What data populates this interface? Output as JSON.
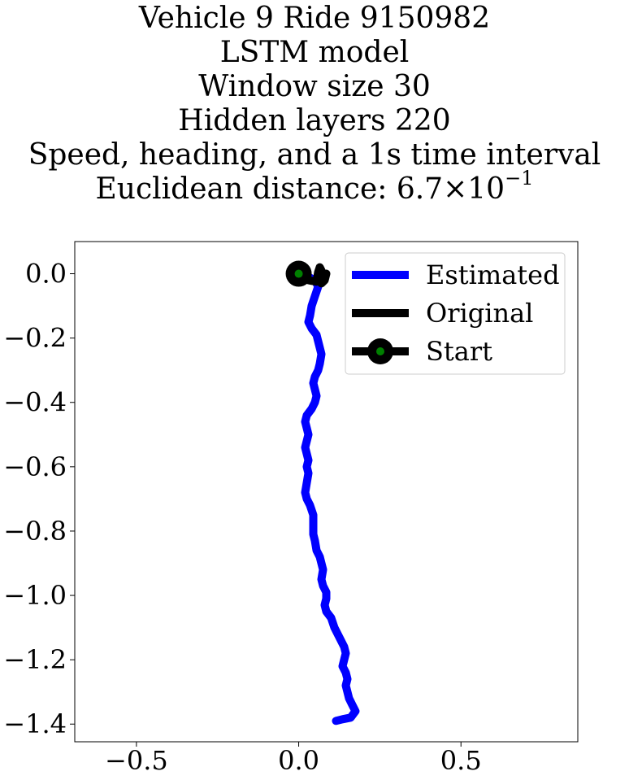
{
  "chart_data": {
    "type": "line",
    "title_lines": [
      "Vehicle 9 Ride 9150982",
      "LSTM model",
      "Window size 30",
      "Hidden layers 220",
      "Speed, heading, and a 1s time interval"
    ],
    "metric": {
      "label": "Euclidean distance: ",
      "mantissa": "6.7",
      "times": "×10",
      "exponent": "−1"
    },
    "xlabel": "",
    "ylabel": "",
    "xlim": [
      -0.69,
      0.86
    ],
    "ylim": [
      -1.455,
      0.1
    ],
    "x_ticks": [
      -0.5,
      0.0,
      0.5
    ],
    "x_tick_labels": [
      "−0.5",
      "0.0",
      "0.5"
    ],
    "y_ticks": [
      0.0,
      -0.2,
      -0.4,
      -0.6,
      -0.8,
      -1.0,
      -1.2,
      -1.4
    ],
    "y_tick_labels": [
      "0.0",
      "−0.2",
      "−0.4",
      "−0.6",
      "−0.8",
      "−1.0",
      "−1.2",
      "−1.4"
    ],
    "grid": false,
    "legend": {
      "placement": "top-right",
      "entries": [
        "Estimated",
        "Original",
        "Start"
      ]
    },
    "series": [
      {
        "name": "Estimated",
        "color": "#0000ff",
        "points": [
          [
            0.0,
            0.0
          ],
          [
            0.03,
            -0.01
          ],
          [
            0.05,
            -0.02
          ],
          [
            0.06,
            -0.04
          ],
          [
            0.05,
            -0.07
          ],
          [
            0.04,
            -0.1
          ],
          [
            0.035,
            -0.13
          ],
          [
            0.03,
            -0.15
          ],
          [
            0.04,
            -0.17
          ],
          [
            0.055,
            -0.19
          ],
          [
            0.06,
            -0.21
          ],
          [
            0.065,
            -0.23
          ],
          [
            0.07,
            -0.25
          ],
          [
            0.065,
            -0.28
          ],
          [
            0.06,
            -0.3
          ],
          [
            0.05,
            -0.32
          ],
          [
            0.045,
            -0.34
          ],
          [
            0.05,
            -0.36
          ],
          [
            0.055,
            -0.38
          ],
          [
            0.05,
            -0.4
          ],
          [
            0.04,
            -0.42
          ],
          [
            0.025,
            -0.44
          ],
          [
            0.02,
            -0.46
          ],
          [
            0.025,
            -0.48
          ],
          [
            0.03,
            -0.5
          ],
          [
            0.025,
            -0.52
          ],
          [
            0.02,
            -0.54
          ],
          [
            0.025,
            -0.56
          ],
          [
            0.03,
            -0.58
          ],
          [
            0.025,
            -0.6
          ],
          [
            0.03,
            -0.62
          ],
          [
            0.025,
            -0.65
          ],
          [
            0.02,
            -0.68
          ],
          [
            0.025,
            -0.7
          ],
          [
            0.035,
            -0.72
          ],
          [
            0.045,
            -0.75
          ],
          [
            0.045,
            -0.78
          ],
          [
            0.045,
            -0.81
          ],
          [
            0.05,
            -0.83
          ],
          [
            0.055,
            -0.86
          ],
          [
            0.065,
            -0.88
          ],
          [
            0.07,
            -0.9
          ],
          [
            0.075,
            -0.92
          ],
          [
            0.07,
            -0.95
          ],
          [
            0.075,
            -0.97
          ],
          [
            0.085,
            -0.99
          ],
          [
            0.085,
            -1.01
          ],
          [
            0.08,
            -1.03
          ],
          [
            0.085,
            -1.05
          ],
          [
            0.1,
            -1.07
          ],
          [
            0.11,
            -1.1
          ],
          [
            0.12,
            -1.12
          ],
          [
            0.13,
            -1.14
          ],
          [
            0.14,
            -1.16
          ],
          [
            0.145,
            -1.18
          ],
          [
            0.14,
            -1.2
          ],
          [
            0.135,
            -1.22
          ],
          [
            0.145,
            -1.24
          ],
          [
            0.15,
            -1.26
          ],
          [
            0.145,
            -1.28
          ],
          [
            0.15,
            -1.3
          ],
          [
            0.155,
            -1.32
          ],
          [
            0.165,
            -1.34
          ],
          [
            0.175,
            -1.36
          ],
          [
            0.16,
            -1.38
          ],
          [
            0.135,
            -1.385
          ],
          [
            0.115,
            -1.39
          ]
        ]
      },
      {
        "name": "Original",
        "color": "#000000",
        "points": [
          [
            0.0,
            0.0
          ],
          [
            0.03,
            -0.02
          ],
          [
            0.055,
            -0.025
          ],
          [
            0.06,
            0.005
          ],
          [
            0.065,
            0.02
          ],
          [
            0.07,
            0.01
          ],
          [
            0.06,
            -0.015
          ],
          [
            0.07,
            -0.03
          ],
          [
            0.08,
            -0.02
          ],
          [
            0.085,
            0.0
          ],
          [
            0.08,
            -0.01
          ],
          [
            0.07,
            -0.02
          ],
          [
            0.06,
            -0.005
          ],
          [
            0.065,
            0.01
          ],
          [
            0.075,
            -0.01
          ]
        ]
      }
    ],
    "start_point": {
      "x": 0.0,
      "y": 0.0,
      "outer_color": "#000000",
      "inner_color": "#008000"
    }
  }
}
